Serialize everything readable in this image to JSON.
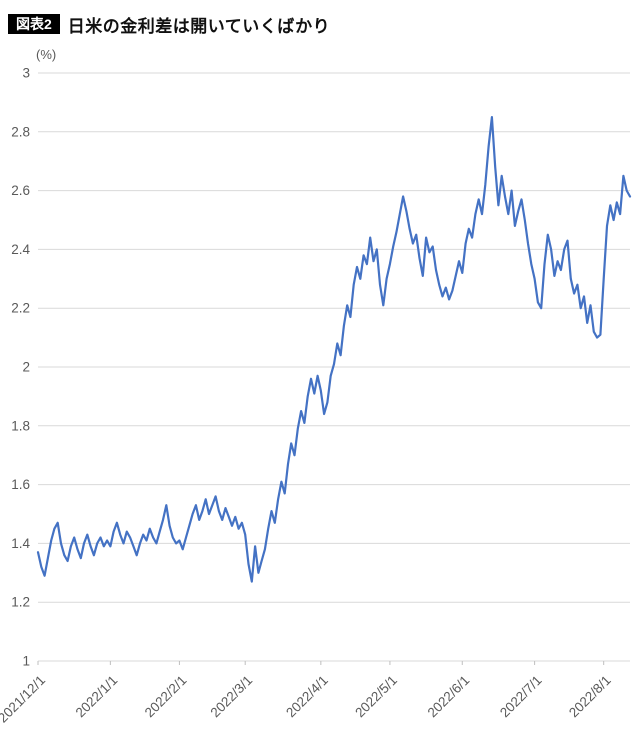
{
  "header": {
    "badge": "図表2",
    "title": "日米の金利差は開いていくばかり"
  },
  "colors": {
    "line": "#4472c4",
    "grid": "#d9d9d9",
    "axis": "#bfbfbf",
    "tick_text": "#595959"
  },
  "chart_data": {
    "type": "line",
    "title": "日米の金利差は開いていくばかり",
    "unit_label": "(%)",
    "xlabel": "",
    "ylabel": "(%)",
    "ylim": [
      1,
      3
    ],
    "grid": "horizontal",
    "legend": "none",
    "line_color": "#4472c4",
    "ytick_labels": [
      "1",
      "1.2",
      "1.4",
      "1.6",
      "1.8",
      "2",
      "2.2",
      "2.4",
      "2.6",
      "2.8",
      "3"
    ],
    "x_tick_labels": [
      "2021/12/1",
      "2022/1/1",
      "2022/2/1",
      "2022/3/1",
      "2022/4/1",
      "2022/5/1",
      "2022/6/1",
      "2022/7/1",
      "2022/8/1"
    ],
    "x_tick_indices": [
      0,
      22,
      43,
      63,
      86,
      107,
      129,
      151,
      172
    ],
    "values": [
      1.37,
      1.32,
      1.29,
      1.35,
      1.41,
      1.45,
      1.47,
      1.4,
      1.36,
      1.34,
      1.39,
      1.42,
      1.38,
      1.35,
      1.4,
      1.43,
      1.39,
      1.36,
      1.4,
      1.42,
      1.39,
      1.41,
      1.39,
      1.44,
      1.47,
      1.43,
      1.4,
      1.44,
      1.42,
      1.39,
      1.36,
      1.4,
      1.43,
      1.41,
      1.45,
      1.42,
      1.4,
      1.44,
      1.48,
      1.53,
      1.46,
      1.42,
      1.4,
      1.41,
      1.38,
      1.42,
      1.46,
      1.5,
      1.53,
      1.48,
      1.51,
      1.55,
      1.5,
      1.53,
      1.56,
      1.51,
      1.48,
      1.52,
      1.49,
      1.46,
      1.49,
      1.45,
      1.47,
      1.43,
      1.33,
      1.27,
      1.39,
      1.3,
      1.34,
      1.38,
      1.45,
      1.51,
      1.47,
      1.55,
      1.61,
      1.57,
      1.67,
      1.74,
      1.7,
      1.79,
      1.85,
      1.81,
      1.9,
      1.96,
      1.91,
      1.97,
      1.92,
      1.84,
      1.88,
      1.97,
      2.01,
      2.08,
      2.04,
      2.14,
      2.21,
      2.17,
      2.28,
      2.34,
      2.3,
      2.38,
      2.35,
      2.44,
      2.36,
      2.4,
      2.28,
      2.21,
      2.3,
      2.35,
      2.41,
      2.46,
      2.52,
      2.58,
      2.53,
      2.47,
      2.42,
      2.45,
      2.37,
      2.31,
      2.44,
      2.39,
      2.41,
      2.33,
      2.28,
      2.24,
      2.27,
      2.23,
      2.26,
      2.31,
      2.36,
      2.32,
      2.42,
      2.47,
      2.44,
      2.52,
      2.57,
      2.52,
      2.62,
      2.75,
      2.85,
      2.68,
      2.55,
      2.65,
      2.58,
      2.52,
      2.6,
      2.48,
      2.53,
      2.57,
      2.5,
      2.42,
      2.35,
      2.3,
      2.22,
      2.2,
      2.35,
      2.45,
      2.4,
      2.31,
      2.36,
      2.33,
      2.4,
      2.43,
      2.3,
      2.25,
      2.28,
      2.2,
      2.24,
      2.15,
      2.21,
      2.12,
      2.1,
      2.11,
      2.3,
      2.48,
      2.55,
      2.5,
      2.56,
      2.52,
      2.65,
      2.6,
      2.58
    ]
  }
}
